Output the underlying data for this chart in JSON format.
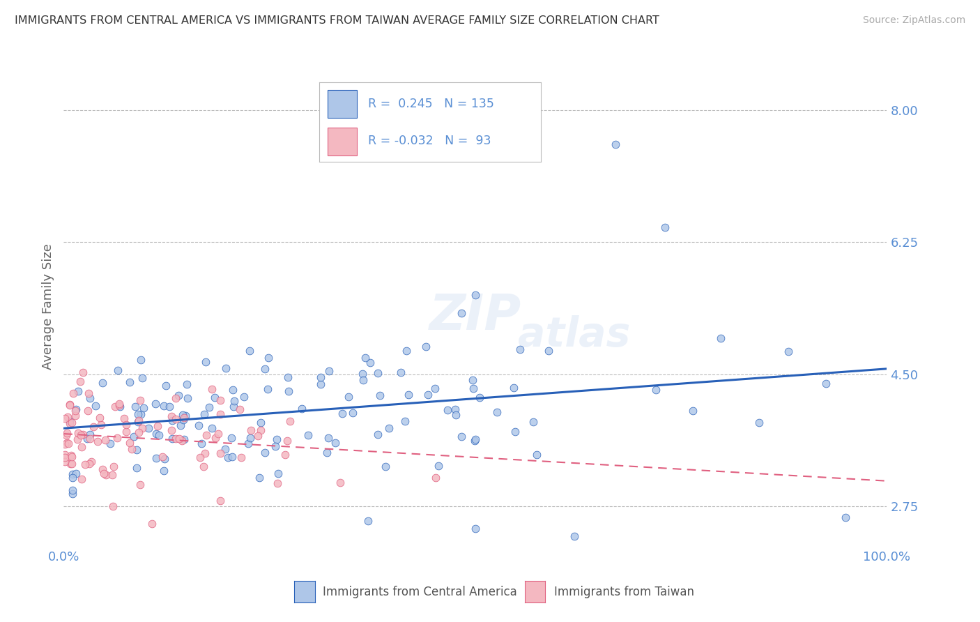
{
  "title": "IMMIGRANTS FROM CENTRAL AMERICA VS IMMIGRANTS FROM TAIWAN AVERAGE FAMILY SIZE CORRELATION CHART",
  "source": "Source: ZipAtlas.com",
  "ylabel": "Average Family Size",
  "xlim": [
    0,
    1
  ],
  "ylim": [
    2.2,
    8.6
  ],
  "yticks": [
    2.75,
    4.5,
    6.25,
    8.0
  ],
  "xticks": [
    0.0,
    0.25,
    0.5,
    0.75,
    1.0
  ],
  "xticklabels": [
    "0.0%",
    "",
    "",
    "",
    "100.0%"
  ],
  "yticklabels": [
    "2.75",
    "4.50",
    "6.25",
    "8.00"
  ],
  "series1_label": "Immigrants from Central America",
  "series2_label": "Immigrants from Taiwan",
  "color1": "#aec6e8",
  "color2": "#f4b8c1",
  "trend1_color": "#2860b8",
  "trend2_color": "#e06080",
  "background_color": "#ffffff",
  "watermark": "ZIPAtlas",
  "title_color": "#333333",
  "axis_color": "#5a8fd4",
  "grid_color": "#bbbbbb",
  "n1": 135,
  "n2": 93,
  "R1": 0.245,
  "R2": -0.032
}
